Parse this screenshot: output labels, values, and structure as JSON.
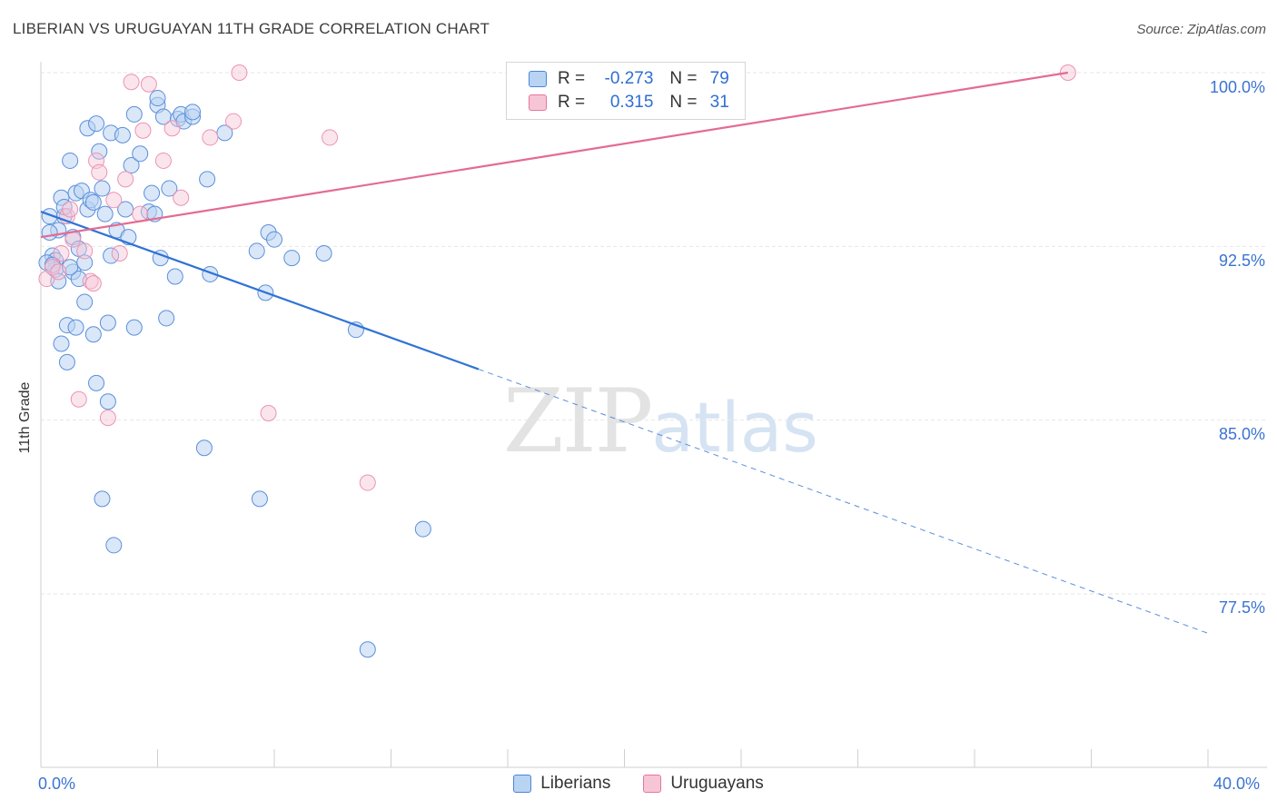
{
  "title": "LIBERIAN VS URUGUAYAN 11TH GRADE CORRELATION CHART",
  "source": "Source: ZipAtlas.com",
  "watermark": {
    "zip": "ZIP",
    "atlas": "atlas"
  },
  "legend_top": [
    {
      "r_label": "R =",
      "r_value": "-0.273",
      "n_label": "N =",
      "n_value": "79"
    },
    {
      "r_label": "R =",
      "r_value": "0.315",
      "n_label": "N =",
      "n_value": "31"
    }
  ],
  "colors": {
    "blue": "#4a86d8",
    "blue_fill": "#b9d3f3",
    "pink": "#e8749a",
    "pink_fill": "#f7c6d6",
    "tick_text": "#3b73d1"
  },
  "chart_data": {
    "type": "scatter",
    "title": "LIBERIAN VS URUGUAYAN 11TH GRADE CORRELATION CHART",
    "xlabel": "",
    "ylabel": "11th Grade",
    "xlim": [
      0,
      40
    ],
    "ylim": [
      71.0,
      101.5
    ],
    "x_tick_labels": [
      "0.0%",
      "40.0%"
    ],
    "y_ticks": [
      77.5,
      85.0,
      92.5,
      100.0
    ],
    "y_tick_labels": [
      "77.5%",
      "85.0%",
      "92.5%",
      "100.0%"
    ],
    "grid": true,
    "legend_position": "bottom-center",
    "series": [
      {
        "name": "Liberians",
        "color": "#4a86d8",
        "trend": {
          "x0": 0,
          "y0": 94.0,
          "x1": 15.0,
          "y1": 87.2,
          "dash_to_x": 40.0,
          "dash_to_y": 75.8
        },
        "points": [
          [
            0.3,
            93.8
          ],
          [
            0.4,
            92.1
          ],
          [
            0.5,
            91.9
          ],
          [
            0.5,
            91.5
          ],
          [
            0.6,
            93.2
          ],
          [
            0.6,
            91.0
          ],
          [
            0.7,
            94.6
          ],
          [
            0.8,
            93.8
          ],
          [
            0.8,
            94.2
          ],
          [
            0.9,
            89.1
          ],
          [
            0.9,
            87.5
          ],
          [
            1.0,
            96.2
          ],
          [
            1.1,
            92.9
          ],
          [
            1.1,
            91.4
          ],
          [
            1.2,
            94.8
          ],
          [
            1.3,
            92.4
          ],
          [
            1.3,
            91.1
          ],
          [
            1.4,
            94.9
          ],
          [
            1.5,
            91.8
          ],
          [
            1.5,
            90.1
          ],
          [
            1.6,
            97.6
          ],
          [
            1.6,
            94.1
          ],
          [
            1.7,
            94.5
          ],
          [
            1.8,
            94.4
          ],
          [
            1.9,
            97.8
          ],
          [
            1.9,
            86.6
          ],
          [
            2.0,
            96.6
          ],
          [
            2.1,
            95.0
          ],
          [
            2.2,
            93.9
          ],
          [
            2.3,
            89.2
          ],
          [
            2.3,
            85.8
          ],
          [
            2.4,
            92.1
          ],
          [
            2.4,
            97.4
          ],
          [
            2.5,
            79.6
          ],
          [
            2.6,
            93.2
          ],
          [
            2.8,
            97.3
          ],
          [
            2.9,
            94.1
          ],
          [
            3.0,
            92.9
          ],
          [
            3.1,
            96.0
          ],
          [
            3.2,
            98.2
          ],
          [
            3.2,
            89.0
          ],
          [
            3.4,
            96.5
          ],
          [
            3.7,
            94.0
          ],
          [
            3.8,
            94.8
          ],
          [
            3.9,
            93.9
          ],
          [
            4.0,
            98.6
          ],
          [
            4.0,
            98.9
          ],
          [
            4.1,
            92.0
          ],
          [
            4.2,
            98.1
          ],
          [
            4.3,
            89.4
          ],
          [
            4.4,
            95.0
          ],
          [
            4.6,
            91.2
          ],
          [
            4.7,
            98.0
          ],
          [
            4.8,
            98.2
          ],
          [
            4.9,
            97.9
          ],
          [
            5.2,
            98.1
          ],
          [
            5.2,
            98.3
          ],
          [
            5.6,
            83.8
          ],
          [
            5.7,
            95.4
          ],
          [
            6.3,
            97.4
          ],
          [
            7.4,
            92.3
          ],
          [
            7.5,
            81.6
          ],
          [
            7.7,
            90.5
          ],
          [
            7.8,
            93.1
          ],
          [
            8.0,
            92.8
          ],
          [
            8.6,
            92.0
          ],
          [
            9.7,
            92.2
          ],
          [
            10.8,
            88.9
          ],
          [
            11.2,
            75.1
          ],
          [
            13.1,
            80.3
          ],
          [
            2.1,
            81.6
          ],
          [
            5.8,
            91.3
          ],
          [
            0.2,
            91.8
          ],
          [
            0.3,
            93.1
          ],
          [
            0.7,
            88.3
          ],
          [
            1.0,
            91.6
          ],
          [
            1.8,
            88.7
          ],
          [
            0.4,
            91.7
          ],
          [
            1.2,
            89.0
          ]
        ]
      },
      {
        "name": "Uruguayans",
        "color": "#e8749a",
        "trend": {
          "x0": 0,
          "y0": 92.9,
          "x1": 35.2,
          "y1": 100.0
        },
        "points": [
          [
            0.2,
            91.1
          ],
          [
            0.4,
            91.6
          ],
          [
            0.6,
            91.4
          ],
          [
            0.7,
            92.2
          ],
          [
            0.9,
            93.8
          ],
          [
            1.0,
            94.1
          ],
          [
            1.1,
            92.8
          ],
          [
            1.3,
            85.9
          ],
          [
            1.5,
            92.3
          ],
          [
            1.7,
            91.0
          ],
          [
            1.8,
            90.9
          ],
          [
            1.9,
            96.2
          ],
          [
            2.0,
            95.7
          ],
          [
            2.3,
            85.1
          ],
          [
            2.5,
            94.5
          ],
          [
            2.7,
            92.2
          ],
          [
            2.9,
            95.4
          ],
          [
            3.1,
            99.6
          ],
          [
            3.4,
            93.9
          ],
          [
            3.5,
            97.5
          ],
          [
            3.7,
            99.5
          ],
          [
            4.2,
            96.2
          ],
          [
            4.5,
            97.6
          ],
          [
            4.8,
            94.6
          ],
          [
            5.8,
            97.2
          ],
          [
            6.6,
            97.9
          ],
          [
            6.8,
            100.0
          ],
          [
            7.8,
            85.3
          ],
          [
            9.9,
            97.2
          ],
          [
            11.2,
            82.3
          ],
          [
            35.2,
            100.0
          ]
        ]
      }
    ]
  }
}
